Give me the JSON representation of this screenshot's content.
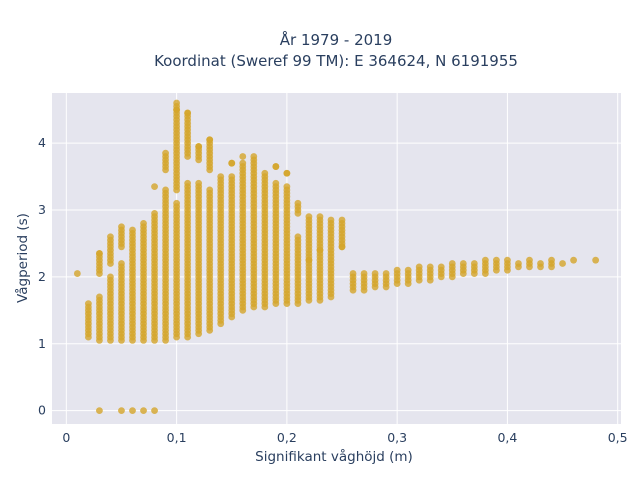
{
  "chart_data": {
    "type": "scatter",
    "title": "År 1979 - 2019",
    "subtitle": "Koordinat (Sweref 99 TM): E 364624, N 6191955",
    "xlabel": "Signifikant våghöjd (m)",
    "ylabel": "Vågperiod (s)",
    "xlim": [
      -0.013,
      0.503
    ],
    "ylim": [
      -0.2,
      4.75
    ],
    "x_ticks": [
      0,
      0.1,
      0.2,
      0.3,
      0.4,
      0.5
    ],
    "x_tick_labels": [
      "0",
      "0,1",
      "0,2",
      "0,3",
      "0,4",
      "0,5"
    ],
    "y_ticks": [
      0,
      1,
      2,
      3,
      4
    ],
    "y_tick_labels": [
      "0",
      "1",
      "2",
      "3",
      "4"
    ],
    "marker_color": "#d4a52a",
    "plot_background": "#e5e5ee",
    "grid": true,
    "legend": "none",
    "columns": [
      {
        "x": 0.01,
        "ranges": [
          [
            2.05,
            2.05
          ]
        ]
      },
      {
        "x": 0.02,
        "ranges": [
          [
            1.1,
            1.6
          ]
        ]
      },
      {
        "x": 0.03,
        "ranges": [
          [
            0,
            0
          ],
          [
            1.05,
            1.7
          ],
          [
            2.05,
            2.35
          ]
        ]
      },
      {
        "x": 0.04,
        "ranges": [
          [
            1.05,
            2.0
          ],
          [
            2.2,
            2.6
          ]
        ]
      },
      {
        "x": 0.05,
        "ranges": [
          [
            0,
            0
          ],
          [
            1.05,
            2.2
          ],
          [
            2.45,
            2.75
          ]
        ]
      },
      {
        "x": 0.06,
        "ranges": [
          [
            0,
            0
          ],
          [
            1.05,
            2.7
          ]
        ]
      },
      {
        "x": 0.07,
        "ranges": [
          [
            0,
            0
          ],
          [
            1.05,
            2.8
          ]
        ]
      },
      {
        "x": 0.08,
        "ranges": [
          [
            0,
            0
          ],
          [
            1.05,
            2.95
          ],
          [
            3.35,
            3.35
          ]
        ]
      },
      {
        "x": 0.09,
        "ranges": [
          [
            1.05,
            3.3
          ],
          [
            3.6,
            3.85
          ]
        ]
      },
      {
        "x": 0.1,
        "ranges": [
          [
            1.1,
            3.1
          ],
          [
            3.3,
            4.6
          ]
        ]
      },
      {
        "x": 0.11,
        "ranges": [
          [
            1.1,
            3.4
          ],
          [
            3.8,
            4.45
          ]
        ]
      },
      {
        "x": 0.12,
        "ranges": [
          [
            1.15,
            3.4
          ],
          [
            3.75,
            3.95
          ]
        ]
      },
      {
        "x": 0.13,
        "ranges": [
          [
            1.2,
            3.3
          ],
          [
            3.6,
            4.05
          ]
        ]
      },
      {
        "x": 0.14,
        "ranges": [
          [
            1.3,
            3.5
          ]
        ]
      },
      {
        "x": 0.15,
        "ranges": [
          [
            1.4,
            3.5
          ],
          [
            3.7,
            3.7
          ]
        ]
      },
      {
        "x": 0.16,
        "ranges": [
          [
            1.5,
            3.7
          ],
          [
            3.8,
            3.8
          ]
        ]
      },
      {
        "x": 0.17,
        "ranges": [
          [
            1.55,
            3.8
          ]
        ]
      },
      {
        "x": 0.18,
        "ranges": [
          [
            1.55,
            3.55
          ]
        ]
      },
      {
        "x": 0.19,
        "ranges": [
          [
            1.6,
            3.4
          ],
          [
            3.65,
            3.65
          ]
        ]
      },
      {
        "x": 0.2,
        "ranges": [
          [
            1.6,
            3.35
          ],
          [
            3.55,
            3.55
          ]
        ]
      },
      {
        "x": 0.21,
        "ranges": [
          [
            1.6,
            2.6
          ],
          [
            2.95,
            3.1
          ]
        ]
      },
      {
        "x": 0.22,
        "ranges": [
          [
            1.65,
            2.9
          ]
        ]
      },
      {
        "x": 0.23,
        "ranges": [
          [
            1.65,
            2.9
          ]
        ]
      },
      {
        "x": 0.24,
        "ranges": [
          [
            1.7,
            2.85
          ]
        ]
      },
      {
        "x": 0.25,
        "ranges": [
          [
            2.45,
            2.85
          ]
        ]
      },
      {
        "x": 0.26,
        "ranges": [
          [
            1.8,
            2.05
          ]
        ]
      },
      {
        "x": 0.27,
        "ranges": [
          [
            1.8,
            2.05
          ]
        ]
      },
      {
        "x": 0.28,
        "ranges": [
          [
            1.85,
            2.05
          ]
        ]
      },
      {
        "x": 0.29,
        "ranges": [
          [
            1.85,
            2.05
          ]
        ]
      },
      {
        "x": 0.3,
        "ranges": [
          [
            1.9,
            2.1
          ]
        ]
      },
      {
        "x": 0.31,
        "ranges": [
          [
            1.9,
            2.1
          ]
        ]
      },
      {
        "x": 0.32,
        "ranges": [
          [
            1.95,
            2.15
          ]
        ]
      },
      {
        "x": 0.33,
        "ranges": [
          [
            1.95,
            2.15
          ]
        ]
      },
      {
        "x": 0.34,
        "ranges": [
          [
            2.0,
            2.15
          ]
        ]
      },
      {
        "x": 0.35,
        "ranges": [
          [
            2.0,
            2.2
          ]
        ]
      },
      {
        "x": 0.36,
        "ranges": [
          [
            2.05,
            2.2
          ]
        ]
      },
      {
        "x": 0.37,
        "ranges": [
          [
            2.05,
            2.2
          ]
        ]
      },
      {
        "x": 0.38,
        "ranges": [
          [
            2.05,
            2.25
          ]
        ]
      },
      {
        "x": 0.39,
        "ranges": [
          [
            2.1,
            2.25
          ]
        ]
      },
      {
        "x": 0.4,
        "ranges": [
          [
            2.1,
            2.25
          ]
        ]
      },
      {
        "x": 0.41,
        "ranges": [
          [
            2.15,
            2.2
          ]
        ]
      },
      {
        "x": 0.42,
        "ranges": [
          [
            2.15,
            2.25
          ]
        ]
      },
      {
        "x": 0.43,
        "ranges": [
          [
            2.15,
            2.2
          ]
        ]
      },
      {
        "x": 0.44,
        "ranges": [
          [
            2.15,
            2.25
          ]
        ]
      },
      {
        "x": 0.45,
        "ranges": [
          [
            2.2,
            2.2
          ]
        ]
      },
      {
        "x": 0.46,
        "ranges": [
          [
            2.25,
            2.25
          ]
        ]
      },
      {
        "x": 0.48,
        "ranges": [
          [
            2.25,
            2.25
          ]
        ]
      }
    ],
    "extra_points": [
      {
        "x": 0.03,
        "y": 2.35
      },
      {
        "x": 0.1,
        "y": 4.5
      },
      {
        "x": 0.11,
        "y": 4.45
      },
      {
        "x": 0.13,
        "y": 4.05
      },
      {
        "x": 0.12,
        "y": 3.95
      },
      {
        "x": 0.15,
        "y": 3.7
      },
      {
        "x": 0.19,
        "y": 3.65
      },
      {
        "x": 0.2,
        "y": 3.55
      },
      {
        "x": 0.22,
        "y": 2.25
      },
      {
        "x": 0.23,
        "y": 2.4
      },
      {
        "x": 0.25,
        "y": 2.45
      }
    ]
  }
}
